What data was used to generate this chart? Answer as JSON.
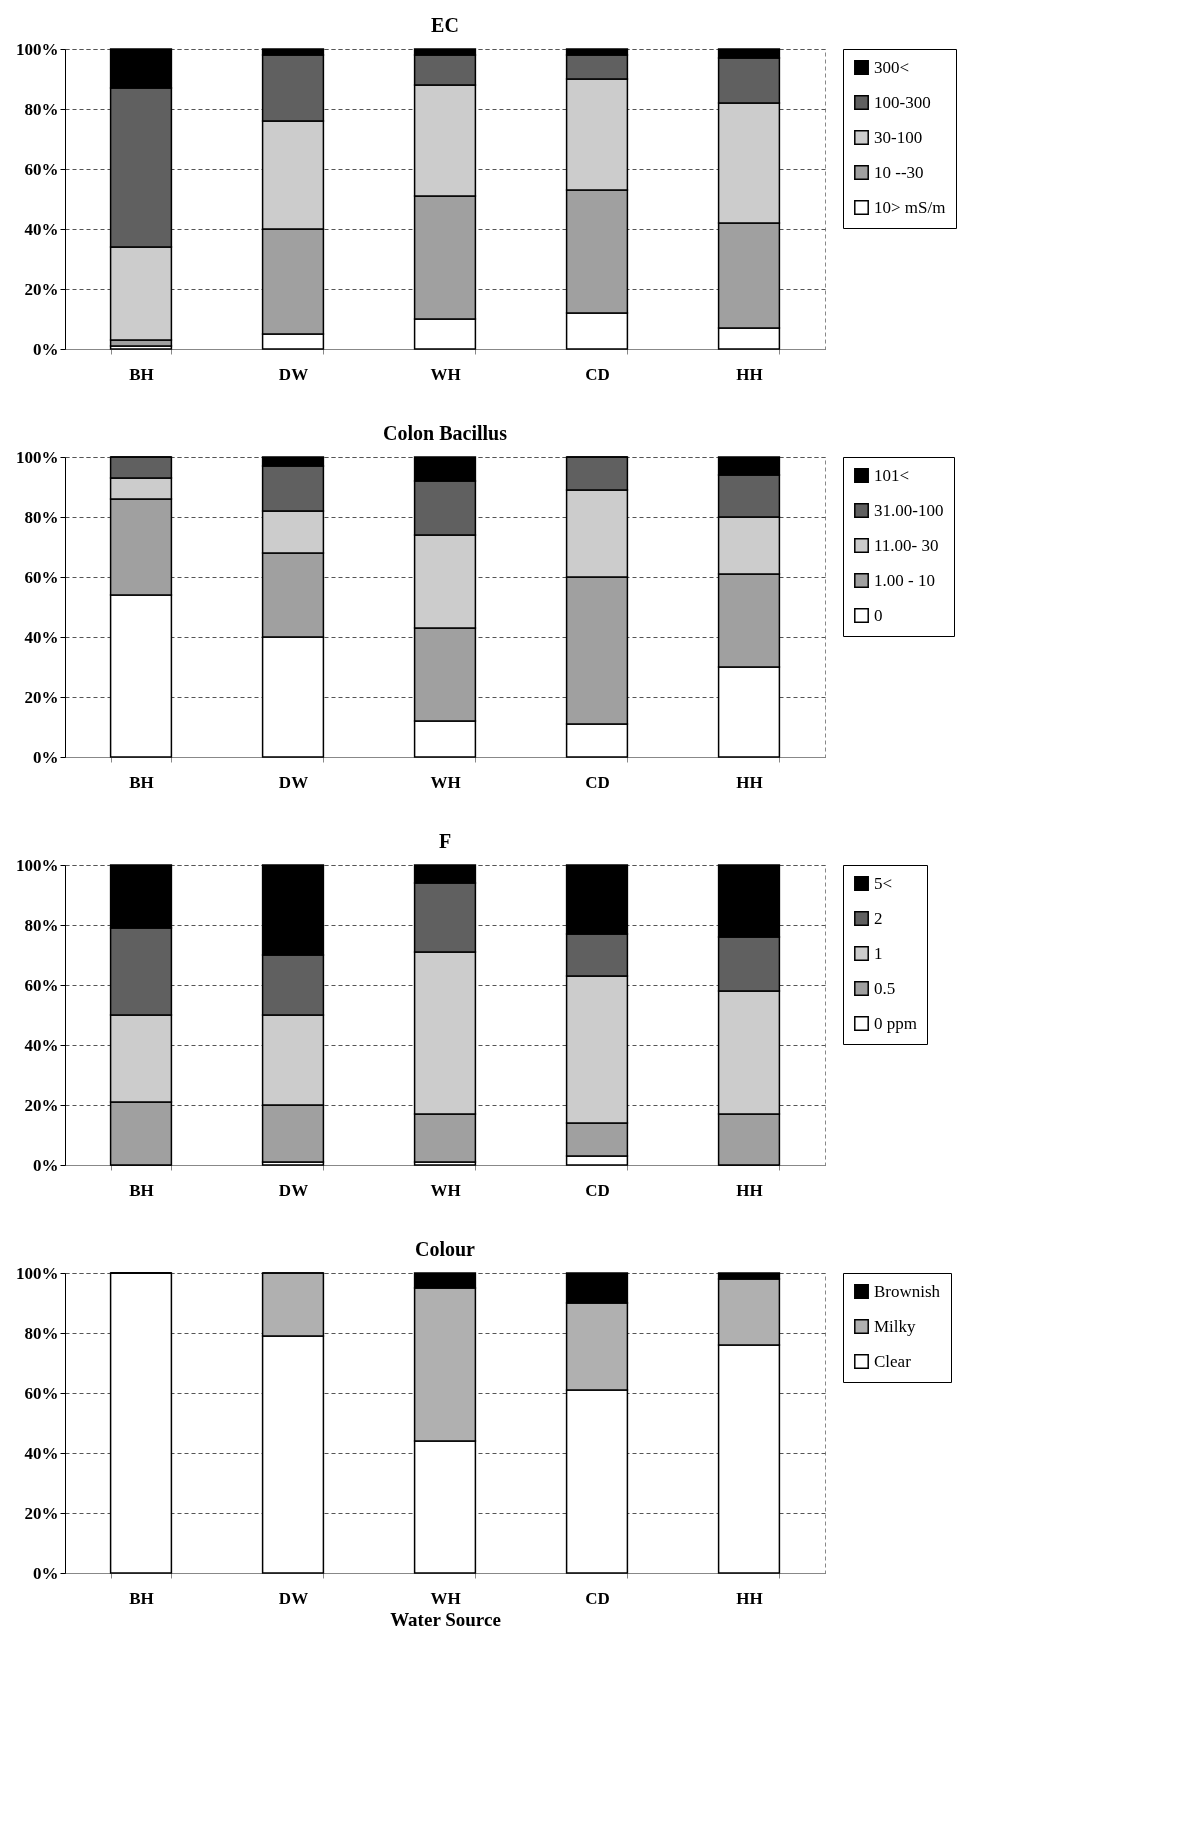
{
  "chart_data": [
    {
      "type": "bar",
      "stacked": true,
      "title": "EC",
      "categories": [
        "BH",
        "DW",
        "WH",
        "CD",
        "HH"
      ],
      "ylim": [
        0,
        100
      ],
      "yticks": [
        {
          "value": 0,
          "label": "0%"
        },
        {
          "value": 20,
          "label": "20%"
        },
        {
          "value": 40,
          "label": "40%"
        },
        {
          "value": 60,
          "label": "60%"
        },
        {
          "value": 80,
          "label": "80%"
        },
        {
          "value": 100,
          "label": "100%"
        }
      ],
      "grid": "y",
      "legend": "right",
      "series": [
        {
          "name": "10> mS/m",
          "color": "#ffffff",
          "values": [
            1,
            5,
            10,
            12,
            7
          ]
        },
        {
          "name": "10 --30",
          "color": "#a0a0a0",
          "values": [
            2,
            35,
            41,
            41,
            35
          ]
        },
        {
          "name": "30-100",
          "color": "#cccccc",
          "values": [
            31,
            36,
            37,
            37,
            40
          ]
        },
        {
          "name": "100-300",
          "color": "#606060",
          "values": [
            53,
            22,
            10,
            8,
            15
          ]
        },
        {
          "name": "300<",
          "color": "#000000",
          "values": [
            13,
            2,
            2,
            2,
            3
          ]
        }
      ]
    },
    {
      "type": "bar",
      "stacked": true,
      "title": "Colon Bacillus",
      "categories": [
        "BH",
        "DW",
        "WH",
        "CD",
        "HH"
      ],
      "ylim": [
        0,
        100
      ],
      "yticks": [
        {
          "value": 0,
          "label": "0%"
        },
        {
          "value": 20,
          "label": "20%"
        },
        {
          "value": 40,
          "label": "40%"
        },
        {
          "value": 60,
          "label": "60%"
        },
        {
          "value": 80,
          "label": "80%"
        },
        {
          "value": 100,
          "label": "100%"
        }
      ],
      "grid": "y",
      "legend": "right",
      "series": [
        {
          "name": "0",
          "color": "#ffffff",
          "values": [
            54,
            40,
            12,
            11,
            30
          ]
        },
        {
          "name": "1.00 - 10",
          "color": "#a0a0a0",
          "values": [
            32,
            28,
            31,
            49,
            31
          ]
        },
        {
          "name": "11.00- 30",
          "color": "#cccccc",
          "values": [
            7,
            14,
            31,
            29,
            19
          ]
        },
        {
          "name": "31.00-100",
          "color": "#606060",
          "values": [
            7,
            15,
            18,
            11,
            14
          ]
        },
        {
          "name": "101<",
          "color": "#000000",
          "values": [
            0,
            3,
            8,
            0,
            6
          ]
        }
      ]
    },
    {
      "type": "bar",
      "stacked": true,
      "title": "F",
      "categories": [
        "BH",
        "DW",
        "WH",
        "CD",
        "HH"
      ],
      "ylim": [
        0,
        100
      ],
      "yticks": [
        {
          "value": 0,
          "label": "0%"
        },
        {
          "value": 20,
          "label": "20%"
        },
        {
          "value": 40,
          "label": "40%"
        },
        {
          "value": 60,
          "label": "60%"
        },
        {
          "value": 80,
          "label": "80%"
        },
        {
          "value": 100,
          "label": "100%"
        }
      ],
      "grid": "y",
      "legend": "right",
      "series": [
        {
          "name": "0 ppm",
          "color": "#ffffff",
          "values": [
            0,
            1,
            1,
            3,
            0
          ]
        },
        {
          "name": "0.5",
          "color": "#a0a0a0",
          "values": [
            21,
            19,
            16,
            11,
            17
          ]
        },
        {
          "name": "1",
          "color": "#cccccc",
          "values": [
            29,
            30,
            54,
            49,
            41
          ]
        },
        {
          "name": "2",
          "color": "#606060",
          "values": [
            29,
            20,
            23,
            14,
            18
          ]
        },
        {
          "name": "5<",
          "color": "#000000",
          "values": [
            21,
            30,
            6,
            23,
            24
          ]
        }
      ]
    },
    {
      "type": "bar",
      "stacked": true,
      "title": "Colour",
      "xlabel": "Water Source",
      "categories": [
        "BH",
        "DW",
        "WH",
        "CD",
        "HH"
      ],
      "ylim": [
        0,
        100
      ],
      "yticks": [
        {
          "value": 0,
          "label": "0%"
        },
        {
          "value": 20,
          "label": "20%"
        },
        {
          "value": 40,
          "label": "40%"
        },
        {
          "value": 60,
          "label": "60%"
        },
        {
          "value": 80,
          "label": "80%"
        },
        {
          "value": 100,
          "label": "100%"
        }
      ],
      "grid": "y",
      "legend": "right",
      "series": [
        {
          "name": "Clear",
          "color": "#ffffff",
          "values": [
            100,
            79,
            44,
            61,
            76
          ]
        },
        {
          "name": "Milky",
          "color": "#b0b0b0",
          "values": [
            0,
            21,
            51,
            29,
            22
          ]
        },
        {
          "name": "Brownish",
          "color": "#000000",
          "values": [
            0,
            0,
            5,
            10,
            2
          ]
        }
      ]
    }
  ]
}
